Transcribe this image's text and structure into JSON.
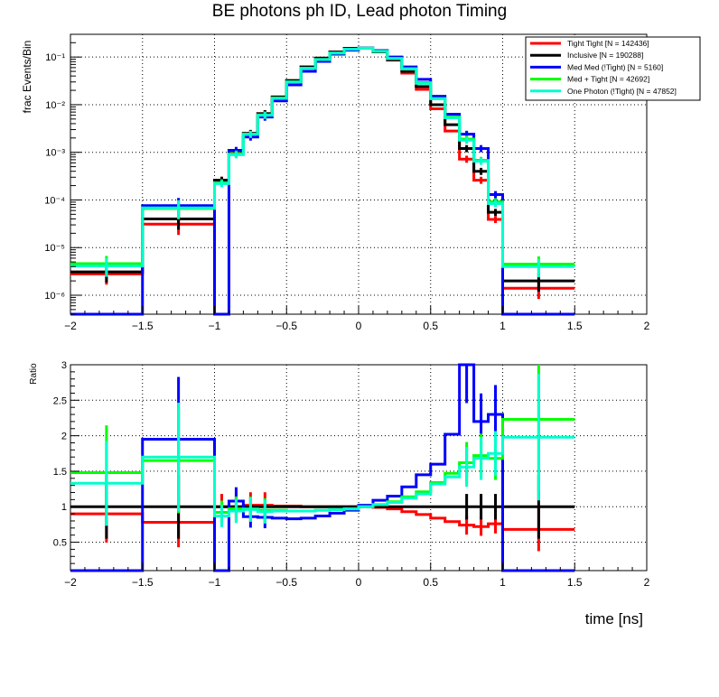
{
  "title": "BE photons ph ID, Lead photon Timing",
  "chart_data": [
    {
      "type": "line",
      "title": "BE photons ph ID, Lead photon Timing",
      "xlabel": "time [ns]",
      "ylabel": "frac Events/Bin",
      "yscale": "log",
      "xlim": [
        -2,
        2
      ],
      "ylim": [
        4e-07,
        0.3
      ],
      "legend_position": "top-right",
      "grid": true,
      "x_edges": [
        -2,
        -1.5,
        -1,
        -0.9,
        -0.8,
        -0.7,
        -0.6,
        -0.5,
        -0.4,
        -0.3,
        -0.2,
        -0.1,
        0,
        0.1,
        0.2,
        0.3,
        0.4,
        0.5,
        0.6,
        0.7,
        0.8,
        0.9,
        1,
        1.5,
        2
      ],
      "series": [
        {
          "name": "Tight Tight [N = 142436]",
          "color": "#ff0000",
          "values": [
            2.8e-06,
            3.1e-05,
            0.00026,
            0.00094,
            0.0025,
            0.0065,
            0.0145,
            0.032,
            0.062,
            0.095,
            0.128,
            0.152,
            0.153,
            0.128,
            0.086,
            0.046,
            0.021,
            0.0082,
            0.0028,
            0.00072,
            0.00026,
            3.9e-05,
            1.4e-06
          ]
        },
        {
          "name": "Inclusive [N = 190288]",
          "color": "#000000",
          "values": [
            3.1e-06,
            4e-05,
            0.00026,
            0.00095,
            0.0025,
            0.0065,
            0.0145,
            0.032,
            0.062,
            0.095,
            0.128,
            0.152,
            0.153,
            0.129,
            0.088,
            0.05,
            0.024,
            0.01,
            0.0038,
            0.0012,
            0.0004,
            5.5e-05,
            2e-06
          ]
        },
        {
          "name": "Med Med (!Tight) [N = 5160]",
          "color": "#0000ff",
          "values": [
            0,
            7.6e-05,
            0,
            0.0011,
            0.0021,
            0.0055,
            0.012,
            0.026,
            0.05,
            0.081,
            0.115,
            0.14,
            0.155,
            0.137,
            0.1,
            0.062,
            0.034,
            0.015,
            0.0063,
            0.0024,
            0.0012,
            0.00013,
            0
          ]
        },
        {
          "name": "Med + Tight [N = 42692]",
          "color": "#00ff00",
          "values": [
            4.6e-06,
            6.6e-05,
            0.00023,
            0.00092,
            0.0024,
            0.0061,
            0.0138,
            0.03,
            0.058,
            0.089,
            0.121,
            0.146,
            0.153,
            0.132,
            0.094,
            0.057,
            0.029,
            0.0135,
            0.0055,
            0.0019,
            0.00068,
            9.2e-05,
            4.5e-06
          ]
        },
        {
          "name": "One Photon (!Tight) [N = 47852]",
          "color": "#00ffcc",
          "values": [
            4.1e-06,
            6.8e-05,
            0.00022,
            0.00089,
            0.0024,
            0.006,
            0.0136,
            0.03,
            0.058,
            0.089,
            0.121,
            0.146,
            0.153,
            0.132,
            0.093,
            0.056,
            0.028,
            0.0133,
            0.0053,
            0.0018,
            0.00065,
            8.4e-05,
            4e-06
          ]
        }
      ]
    },
    {
      "type": "line",
      "xlabel": "time [ns]",
      "ylabel": "Ratio",
      "xlim": [
        -2,
        2
      ],
      "ylim": [
        0.1,
        3
      ],
      "grid": true,
      "x_edges": [
        -2,
        -1.5,
        -1,
        -0.9,
        -0.8,
        -0.7,
        -0.6,
        -0.5,
        -0.4,
        -0.3,
        -0.2,
        -0.1,
        0,
        0.1,
        0.2,
        0.3,
        0.4,
        0.5,
        0.6,
        0.7,
        0.8,
        0.9,
        1,
        1.5,
        2
      ],
      "series": [
        {
          "name": "Tight Tight [N = 142436]",
          "color": "#ff0000",
          "values": [
            0.9,
            0.78,
            1.0,
            1.0,
            1.02,
            1.02,
            1.01,
            1.01,
            1.0,
            1.0,
            1.0,
            1.0,
            1.0,
            0.99,
            0.97,
            0.93,
            0.89,
            0.84,
            0.79,
            0.74,
            0.72,
            0.76,
            0.68
          ]
        },
        {
          "name": "Inclusive [N = 190288]",
          "color": "#000000",
          "values": [
            1,
            1,
            1,
            1,
            1,
            1,
            1,
            1,
            1,
            1,
            1,
            1,
            1,
            1,
            1,
            1,
            1,
            1,
            1,
            1,
            1,
            1,
            1
          ]
        },
        {
          "name": "Med Med (!Tight) [N = 5160]",
          "color": "#0000ff",
          "values": [
            0,
            1.95,
            0,
            1.08,
            0.86,
            0.85,
            0.84,
            0.83,
            0.84,
            0.87,
            0.91,
            0.95,
            1.02,
            1.09,
            1.15,
            1.28,
            1.45,
            1.6,
            2.02,
            3.0,
            2.2,
            2.3,
            0
          ]
        },
        {
          "name": "Med + Tight [N = 42692]",
          "color": "#00ff00",
          "values": [
            1.48,
            1.65,
            0.92,
            0.97,
            0.97,
            0.95,
            0.95,
            0.94,
            0.94,
            0.95,
            0.96,
            0.97,
            1.0,
            1.03,
            1.07,
            1.14,
            1.21,
            1.34,
            1.47,
            1.62,
            1.72,
            1.68,
            2.23
          ]
        },
        {
          "name": "One Photon (!Tight) [N = 47852]",
          "color": "#00ffcc",
          "values": [
            1.33,
            1.7,
            0.87,
            0.94,
            0.96,
            0.93,
            0.94,
            0.94,
            0.94,
            0.95,
            0.96,
            0.97,
            1.0,
            1.03,
            1.06,
            1.12,
            1.18,
            1.32,
            1.42,
            1.56,
            1.68,
            1.75,
            1.98
          ]
        }
      ]
    }
  ],
  "axis_ticks": {
    "x": [
      "−2",
      "−1.5",
      "−1",
      "−0.5",
      "0",
      "0.5",
      "1",
      "1.5",
      "2"
    ],
    "top_y": [
      "10⁻⁶",
      "10⁻⁵",
      "10⁻⁴",
      "10⁻³",
      "10⁻²",
      "10⁻¹"
    ],
    "bottom_y": [
      "0.5",
      "1",
      "1.5",
      "2",
      "2.5",
      "3"
    ]
  }
}
